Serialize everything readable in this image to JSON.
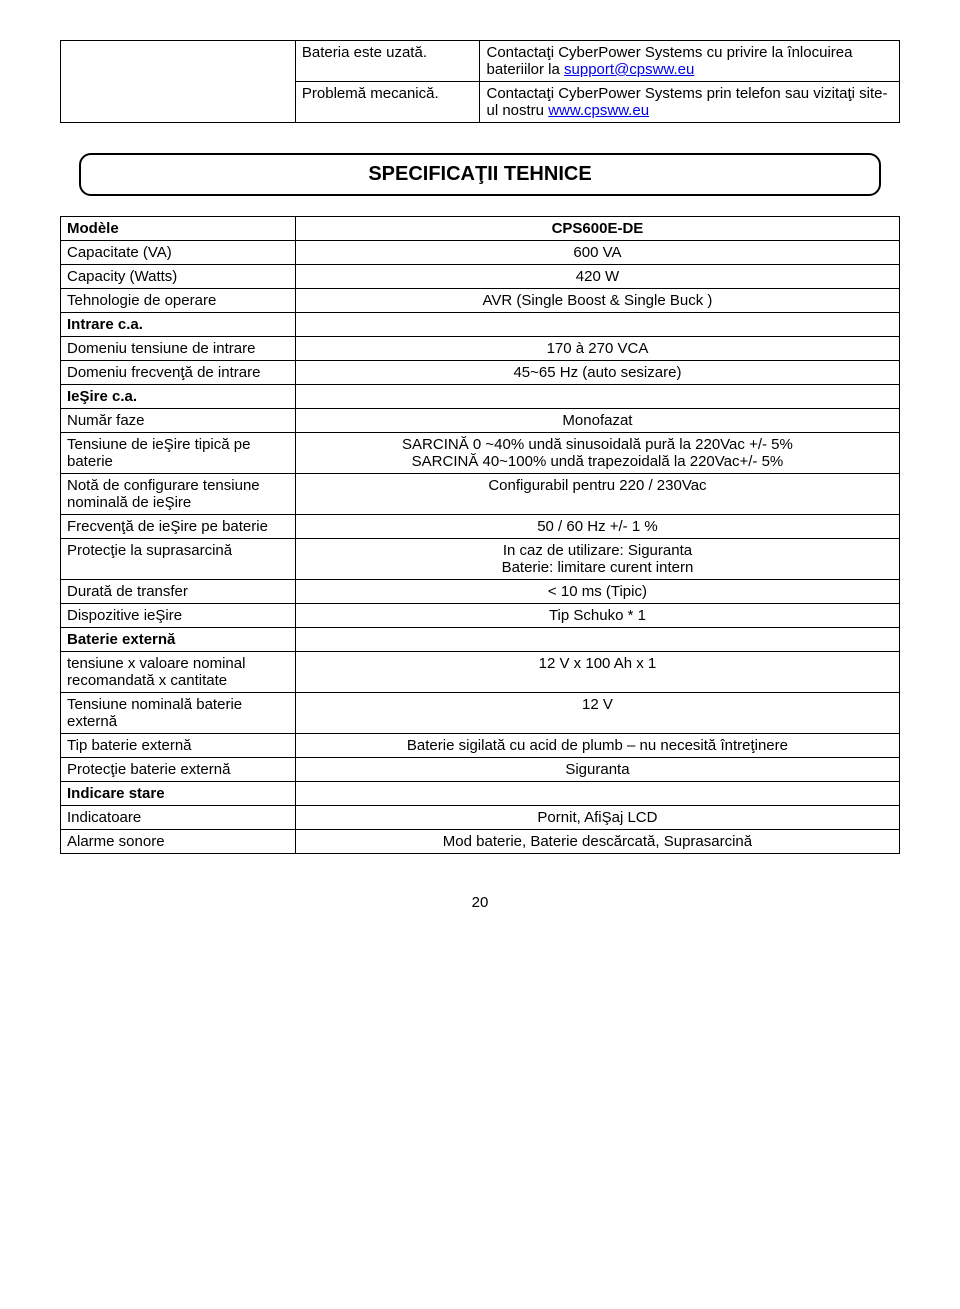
{
  "top_table": {
    "rows": [
      {
        "left": "Bateria este uzată.",
        "right_pre": "Contactaţi CyberPower Systems cu privire la înlocuirea bateriilor la ",
        "right_link": "support@cpsww.eu",
        "right_post": ""
      },
      {
        "left": "Problemă mecanică.",
        "right_pre": "Contactaţi CyberPower Systems prin telefon sau vizitaţi site-ul nostru ",
        "right_link": "www.cpsww.eu",
        "right_post": ""
      }
    ]
  },
  "section_title": "SPECIFICAŢII TEHNICE",
  "spec_table": {
    "rows": [
      {
        "label": "Modèle",
        "label_bold": true,
        "value": "CPS600E-DE",
        "value_bold": true
      },
      {
        "label": "Capacitate (VA)",
        "value": "600 VA"
      },
      {
        "label": "Capacity (Watts)",
        "value": "420 W"
      },
      {
        "label": "Tehnologie de operare",
        "value": "AVR (Single Boost & Single Buck )"
      },
      {
        "label": "Intrare c.a.",
        "label_bold": true,
        "value": ""
      },
      {
        "label": "Domeniu tensiune de intrare",
        "value": "170 à 270 VCA"
      },
      {
        "label": "Domeniu frecvenţă de intrare",
        "value": "45~65 Hz (auto sesizare)"
      },
      {
        "label": "IeŞire c.a.",
        "label_bold": true,
        "value": ""
      },
      {
        "label": "Număr faze",
        "value": "Monofazat"
      },
      {
        "label": "Tensiune de ieŞire tipică pe baterie",
        "value": "SARCINĂ 0 ~40% undă sinusoidală pură la 220Vac +/- 5%\nSARCINĂ 40~100% undă trapezoidală la 220Vac+/- 5%"
      },
      {
        "label": "Notă de configurare tensiune nominală de ieŞire",
        "value": "Configurabil pentru 220 / 230Vac"
      },
      {
        "label": "Frecvenţă de ieŞire pe baterie",
        "value": "50 / 60 Hz +/- 1 %"
      },
      {
        "label": "Protecţie la suprasarcină",
        "value": "In caz de utilizare: Siguranta\nBaterie: limitare curent intern"
      },
      {
        "label": "Durată de transfer",
        "value": "< 10 ms (Tipic)"
      },
      {
        "label": "Dispozitive ieŞire",
        "value": "Tip Schuko * 1"
      },
      {
        "label": "Baterie externă",
        "label_bold": true,
        "value": ""
      },
      {
        "label": "tensiune x valoare nominal recomandată x cantitate",
        "value": "12 V x 100 Ah x 1"
      },
      {
        "label": "Tensiune nominală baterie externă",
        "value": "12 V"
      },
      {
        "label": "Tip baterie externă",
        "value": "Baterie sigilată cu acid de plumb – nu necesită întreţinere"
      },
      {
        "label": "Protecţie baterie externă",
        "value": "Siguranta"
      },
      {
        "label": "Indicare stare",
        "label_bold": true,
        "value": ""
      },
      {
        "label": "Indicatoare",
        "value": "Pornit, AfiŞaj LCD"
      },
      {
        "label": "Alarme sonore",
        "value": "Mod baterie, Baterie descărcată, Suprasarcină"
      }
    ]
  },
  "page_number": "20"
}
